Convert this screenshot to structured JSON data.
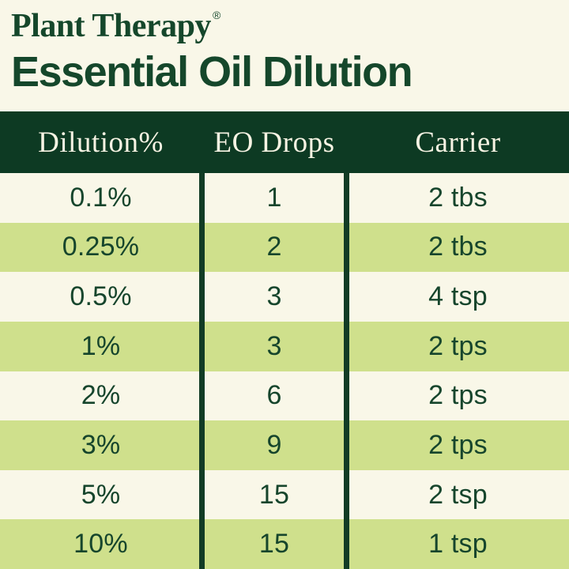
{
  "brand": {
    "name": "Plant Therapy",
    "registered_mark": "®"
  },
  "title": "Essential Oil Dilution",
  "chart_data": {
    "type": "table",
    "title": "Essential Oil Dilution",
    "columns": [
      "Dilution%",
      "EO Drops",
      "Carrier"
    ],
    "rows": [
      [
        "0.1%",
        "1",
        "2 tbs"
      ],
      [
        "0.25%",
        "2",
        "2 tbs"
      ],
      [
        "0.5%",
        "3",
        "4 tsp"
      ],
      [
        "1%",
        "3",
        "2 tps"
      ],
      [
        "2%",
        "6",
        "2 tps"
      ],
      [
        "3%",
        "9",
        "2 tps"
      ],
      [
        "5%",
        "15",
        "2 tsp"
      ],
      [
        "10%",
        "15",
        "1 tsp"
      ]
    ],
    "row_striping": "alternating cream/green starting with cream",
    "legend_position": "none",
    "grid": "vertical dividers only"
  },
  "colors": {
    "background_cream": "#f9f7e8",
    "row_green": "#cfe08c",
    "header_band_green": "#0d3a23",
    "divider_green": "#123c25",
    "text_dark_green": "#16452c",
    "header_text_cream": "#f6f3e3",
    "title_green": "#15472b"
  }
}
